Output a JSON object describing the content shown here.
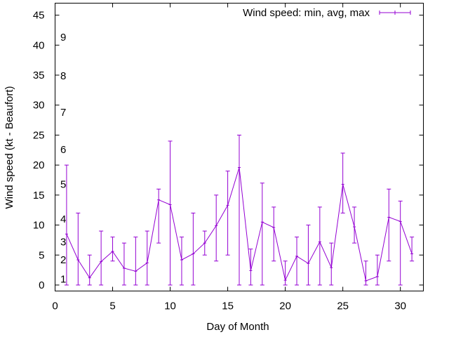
{
  "chart_data": {
    "type": "line",
    "title": "",
    "xlabel": "Day of Month",
    "ylabel": "Wind speed (kt - Beaufort)",
    "xlim": [
      0,
      32
    ],
    "ylim": [
      -1,
      47
    ],
    "xticks": [
      0,
      5,
      10,
      15,
      20,
      25,
      30
    ],
    "yticks": [
      0,
      5,
      10,
      15,
      20,
      25,
      30,
      35,
      40,
      45
    ],
    "grid": false,
    "legend": {
      "position": "top-right",
      "label": "Wind speed: min, avg, max"
    },
    "colors": {
      "series": "#9400d3",
      "axis": "#000000"
    },
    "beaufort_labels": [
      {
        "label": "1",
        "value": 1
      },
      {
        "label": "2",
        "value": 4.2
      },
      {
        "label": "3",
        "value": 7.2
      },
      {
        "label": "4",
        "value": 11
      },
      {
        "label": "5",
        "value": 16.8
      },
      {
        "label": "6",
        "value": 22.6
      },
      {
        "label": "7",
        "value": 28.8
      },
      {
        "label": "8",
        "value": 34.9
      },
      {
        "label": "9",
        "value": 41.3
      }
    ],
    "series": [
      {
        "name": "Wind speed: min, avg, max",
        "x": [
          1,
          2,
          3,
          4,
          5,
          6,
          7,
          8,
          9,
          10,
          11,
          12,
          13,
          14,
          15,
          16,
          17,
          18,
          19,
          20,
          21,
          22,
          23,
          24,
          25,
          26,
          27,
          28,
          29,
          30,
          31
        ],
        "avg": [
          8.5,
          4.2,
          1.2,
          3.9,
          5.6,
          2.8,
          2.3,
          3.7,
          14.2,
          13.4,
          4.2,
          5.2,
          7.0,
          9.9,
          13.3,
          19.6,
          2.4,
          10.5,
          9.6,
          0.8,
          4.8,
          3.6,
          7.2,
          2.9,
          16.8,
          9.7,
          0.7,
          1.4,
          11.3,
          10.6,
          5.2
        ],
        "min": [
          0,
          0,
          0,
          0,
          4,
          0,
          0,
          0,
          7,
          0,
          0,
          0,
          5,
          4,
          5,
          0,
          0,
          0,
          4,
          0,
          0,
          0,
          0,
          0,
          12,
          7,
          0,
          0,
          4,
          0,
          4
        ],
        "max": [
          20,
          12,
          5,
          9,
          8,
          7,
          8,
          9,
          16,
          24,
          8,
          12,
          9,
          15,
          19,
          25,
          6,
          17,
          13,
          4,
          8,
          10,
          13,
          7,
          22,
          13,
          4,
          5,
          16,
          14,
          8
        ]
      }
    ]
  }
}
